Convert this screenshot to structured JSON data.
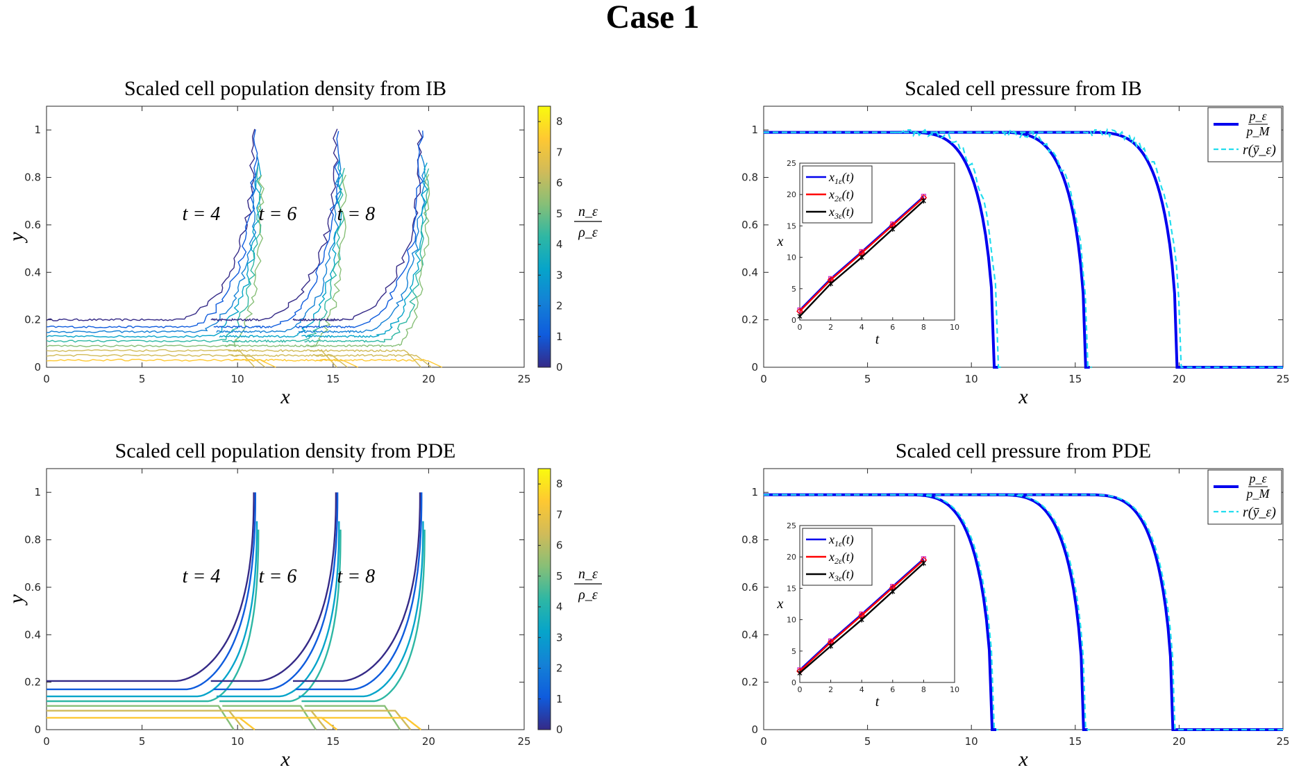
{
  "suptitle": "Case 1",
  "colors": {
    "blue": "#0000ee",
    "cyan": "#22ddee",
    "red": "#ff0000",
    "black": "#000000",
    "magenta": "#cc33cc",
    "parula": [
      "#352a87",
      "#0f5cdd",
      "#1481d6",
      "#06a4ca",
      "#2eb7a4",
      "#87bf77",
      "#d1bb59",
      "#fec832",
      "#f9fb0e"
    ]
  },
  "chart_data": [
    {
      "id": "ib-density",
      "type": "contour",
      "title": "Scaled cell population density from IB",
      "xlabel": "x",
      "ylabel": "y",
      "xlim": [
        0,
        25
      ],
      "ylim": [
        0,
        1.1
      ],
      "xticks": [
        "0",
        "5",
        "10",
        "15",
        "20",
        "25"
      ],
      "yticks": [
        "0",
        "0.2",
        "0.4",
        "0.6",
        "0.8",
        "1"
      ],
      "annotations": [
        "t = 4",
        "t = 6",
        "t = 8"
      ],
      "fronts_x": [
        11.0,
        15.3,
        19.7
      ],
      "levels_y": [
        0.2,
        0.17,
        0.15,
        0.13,
        0.11,
        0.09,
        0.07,
        0.05,
        0.03
      ],
      "noisy": true,
      "colorbar": {
        "label_num": "n_ε",
        "label_den": "ρ_ε",
        "range": [
          0,
          8.5
        ],
        "ticks": [
          "0",
          "1",
          "2",
          "3",
          "4",
          "5",
          "6",
          "7",
          "8"
        ]
      }
    },
    {
      "id": "ib-pressure",
      "type": "line",
      "title": "Scaled cell pressure from IB",
      "xlabel": "x",
      "ylabel": "",
      "xlim": [
        0,
        25
      ],
      "ylim": [
        0,
        1.1
      ],
      "xticks": [
        "0",
        "5",
        "10",
        "15",
        "20",
        "25"
      ],
      "yticks": [
        "0",
        "0.2",
        "0.4",
        "0.6",
        "0.8",
        "1"
      ],
      "series": [
        {
          "name": "p_ε / p_M",
          "style": "solid blue",
          "front_x": [
            11.1,
            15.5,
            19.9
          ]
        },
        {
          "name": "r(ȳ_ε)",
          "style": "dashed cyan",
          "front_x": [
            11.3,
            15.6,
            20.1
          ]
        }
      ],
      "legend": [
        "p_ε",
        "p_M",
        "r(ȳ_ε)"
      ],
      "inset": {
        "type": "line",
        "xlabel": "t",
        "ylabel": "x",
        "xlim": [
          0,
          10
        ],
        "ylim": [
          0,
          25
        ],
        "xticks": [
          "0",
          "2",
          "4",
          "6",
          "8",
          "10"
        ],
        "yticks": [
          "0",
          "5",
          "10",
          "15",
          "20",
          "25"
        ],
        "x": [
          0,
          2,
          4,
          6,
          8
        ],
        "series": [
          {
            "name": "x_1ε(t)",
            "label": "x",
            "sub": "1ε",
            "arg": "(t)",
            "values": [
              1.6,
              6.6,
              10.9,
              15.3,
              19.7
            ]
          },
          {
            "name": "x_2ε(t)",
            "label": "x",
            "sub": "2ε",
            "arg": "(t)",
            "values": [
              1.4,
              6.4,
              10.7,
              15.1,
              19.5
            ]
          },
          {
            "name": "x_3ε(t)",
            "label": "x",
            "sub": "3ε",
            "arg": "(t)",
            "values": [
              0.6,
              5.8,
              10.0,
              14.5,
              19.0
            ]
          }
        ]
      }
    },
    {
      "id": "pde-density",
      "type": "contour",
      "title": "Scaled cell population density from PDE",
      "xlabel": "x",
      "ylabel": "y",
      "xlim": [
        0,
        25
      ],
      "ylim": [
        0,
        1.1
      ],
      "xticks": [
        "0",
        "5",
        "10",
        "15",
        "20",
        "25"
      ],
      "yticks": [
        "0",
        "0.2",
        "0.4",
        "0.6",
        "0.8",
        "1"
      ],
      "annotations": [
        "t = 4",
        "t = 6",
        "t = 8"
      ],
      "fronts_x": [
        11.0,
        15.3,
        19.7
      ],
      "levels_y": [
        0.205,
        0.17,
        0.14,
        0.12,
        0.1,
        0.08,
        0.05
      ],
      "noisy": false,
      "colorbar": {
        "label_num": "n_ε",
        "label_den": "ρ_ε",
        "range": [
          0,
          8.5
        ],
        "ticks": [
          "0",
          "1",
          "2",
          "3",
          "4",
          "5",
          "6",
          "7",
          "8"
        ]
      }
    },
    {
      "id": "pde-pressure",
      "type": "line",
      "title": "Scaled cell pressure from PDE",
      "xlabel": "x",
      "ylabel": "",
      "xlim": [
        0,
        25
      ],
      "ylim": [
        0,
        1.1
      ],
      "xticks": [
        "0",
        "5",
        "10",
        "15",
        "20",
        "25"
      ],
      "yticks": [
        "0",
        "0.2",
        "0.4",
        "0.6",
        "0.8",
        "1"
      ],
      "series": [
        {
          "name": "p_ε / p_M",
          "style": "solid blue",
          "front_x": [
            11.0,
            15.4,
            19.7
          ]
        },
        {
          "name": "r(ȳ_ε)",
          "style": "dashed cyan",
          "front_x": [
            11.1,
            15.5,
            19.8
          ]
        }
      ],
      "legend": [
        "p_ε",
        "p_M",
        "r(ȳ_ε)"
      ],
      "inset": {
        "type": "line",
        "xlabel": "t",
        "ylabel": "x",
        "xlim": [
          0,
          10
        ],
        "ylim": [
          0,
          25
        ],
        "xticks": [
          "0",
          "2",
          "4",
          "6",
          "8",
          "10"
        ],
        "yticks": [
          "0",
          "5",
          "10",
          "15",
          "20",
          "25"
        ],
        "x": [
          0,
          2,
          4,
          6,
          8
        ],
        "series": [
          {
            "name": "x_1ε(t)",
            "label": "x",
            "sub": "1ε",
            "arg": "(t)",
            "values": [
              2.0,
              6.6,
              10.9,
              15.3,
              19.7
            ]
          },
          {
            "name": "x_2ε(t)",
            "label": "x",
            "sub": "2ε",
            "arg": "(t)",
            "values": [
              1.8,
              6.4,
              10.7,
              15.1,
              19.5
            ]
          },
          {
            "name": "x_3ε(t)",
            "label": "x",
            "sub": "3ε",
            "arg": "(t)",
            "values": [
              1.5,
              5.8,
              10.0,
              14.5,
              19.0
            ]
          }
        ]
      }
    }
  ]
}
